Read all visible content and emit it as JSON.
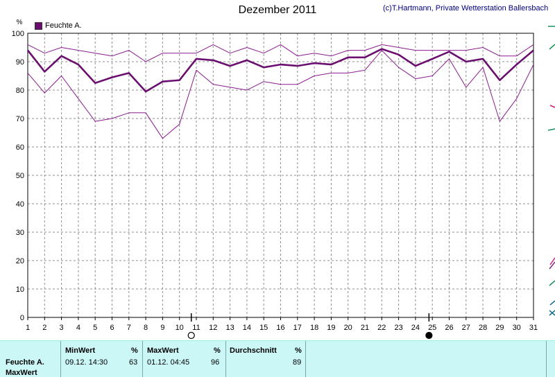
{
  "header": {
    "title": "Dezember 2011",
    "credit": "(c)T.Hartmann, Private Wetterstation Ballersbach"
  },
  "legend": {
    "label": "Feuchte A."
  },
  "chart_data": {
    "type": "line",
    "title": "Dezember 2011",
    "ylabel": "%",
    "xlabel": "",
    "ylim": [
      0,
      100
    ],
    "yticks": [
      0,
      10,
      20,
      30,
      40,
      50,
      60,
      70,
      80,
      90,
      100
    ],
    "xlim": [
      1,
      31
    ],
    "x": [
      1,
      2,
      3,
      4,
      5,
      6,
      7,
      8,
      9,
      10,
      11,
      12,
      13,
      14,
      15,
      16,
      17,
      18,
      19,
      20,
      21,
      22,
      23,
      24,
      25,
      26,
      27,
      28,
      29,
      30,
      31
    ],
    "grid": true,
    "legend_position": "top-left",
    "series": [
      {
        "name": "Feuchte A.",
        "role": "max",
        "color": "#8a1a8f",
        "width": 1,
        "values": [
          96,
          93,
          95,
          94,
          93,
          92,
          94,
          90,
          93,
          93,
          93,
          96,
          93,
          95,
          93,
          96,
          92,
          93,
          92,
          94,
          94,
          96,
          95,
          94,
          94,
          94,
          94,
          95,
          92,
          92,
          96
        ]
      },
      {
        "name": "Feuchte A.",
        "role": "avg",
        "color": "#6a0f6f",
        "width": 2.6,
        "values": [
          94,
          86.5,
          92,
          89,
          82.5,
          84.5,
          86,
          79.5,
          83,
          83.5,
          91,
          90.5,
          88.5,
          90.5,
          88,
          89,
          88.5,
          89.5,
          89,
          91.5,
          91.5,
          94.5,
          92.5,
          88.5,
          91,
          93.5,
          90,
          91,
          83.5,
          89,
          94
        ]
      },
      {
        "name": "Feuchte A.",
        "role": "min",
        "color": "#8a1a8f",
        "width": 1,
        "values": [
          86,
          79,
          85,
          77,
          69,
          70,
          72,
          72,
          63,
          68,
          87,
          82,
          81,
          80,
          83,
          82,
          82,
          85,
          86,
          86,
          87,
          94,
          88,
          84,
          85,
          91,
          81,
          88,
          69,
          77,
          89
        ]
      }
    ],
    "moon_phases": [
      {
        "day": 10.7,
        "phase": "full"
      },
      {
        "day": 24.8,
        "phase": "new"
      }
    ]
  },
  "stats": {
    "row_label": "Feuchte A.",
    "row_label2": "MaxWert",
    "min": {
      "header": "MinWert",
      "unit": "%",
      "time": "09.12.  14:30",
      "value": "63"
    },
    "max": {
      "header": "MaxWert",
      "unit": "%",
      "time": "01.12.  04:45",
      "value": "96"
    },
    "avg": {
      "header": "Durchschnitt",
      "unit": "%",
      "value": "89"
    }
  }
}
